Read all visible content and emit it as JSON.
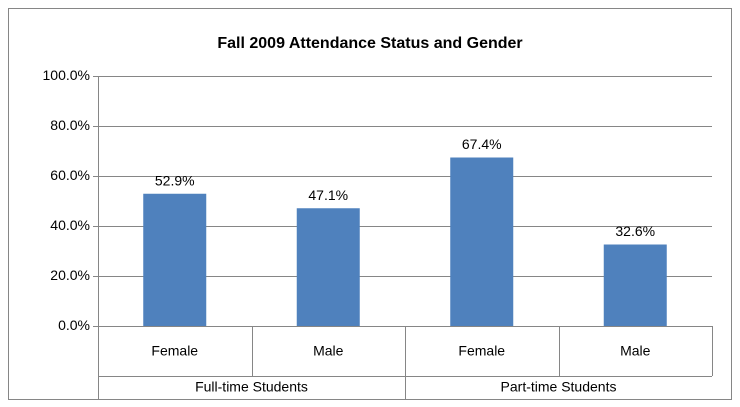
{
  "chart_data": {
    "type": "bar",
    "title": "Fall 2009 Attendance Status and Gender",
    "categories": [
      "Female",
      "Male",
      "Female",
      "Male"
    ],
    "category_groups": [
      "Full-time Students",
      "Part-time Students"
    ],
    "values": [
      52.9,
      47.1,
      67.4,
      32.6
    ],
    "value_labels": [
      "52.9%",
      "47.1%",
      "67.4%",
      "32.6%"
    ],
    "color": "#4f81bd",
    "ylim": [
      0,
      100
    ],
    "yticks": [
      {
        "value": 0,
        "label": "0.0%"
      },
      {
        "value": 20,
        "label": "20.0%"
      },
      {
        "value": 40,
        "label": "40.0%"
      },
      {
        "value": 60,
        "label": "60.0%"
      },
      {
        "value": 80,
        "label": "80.0%"
      },
      {
        "value": 100,
        "label": "100.0%"
      }
    ],
    "grid": true
  }
}
